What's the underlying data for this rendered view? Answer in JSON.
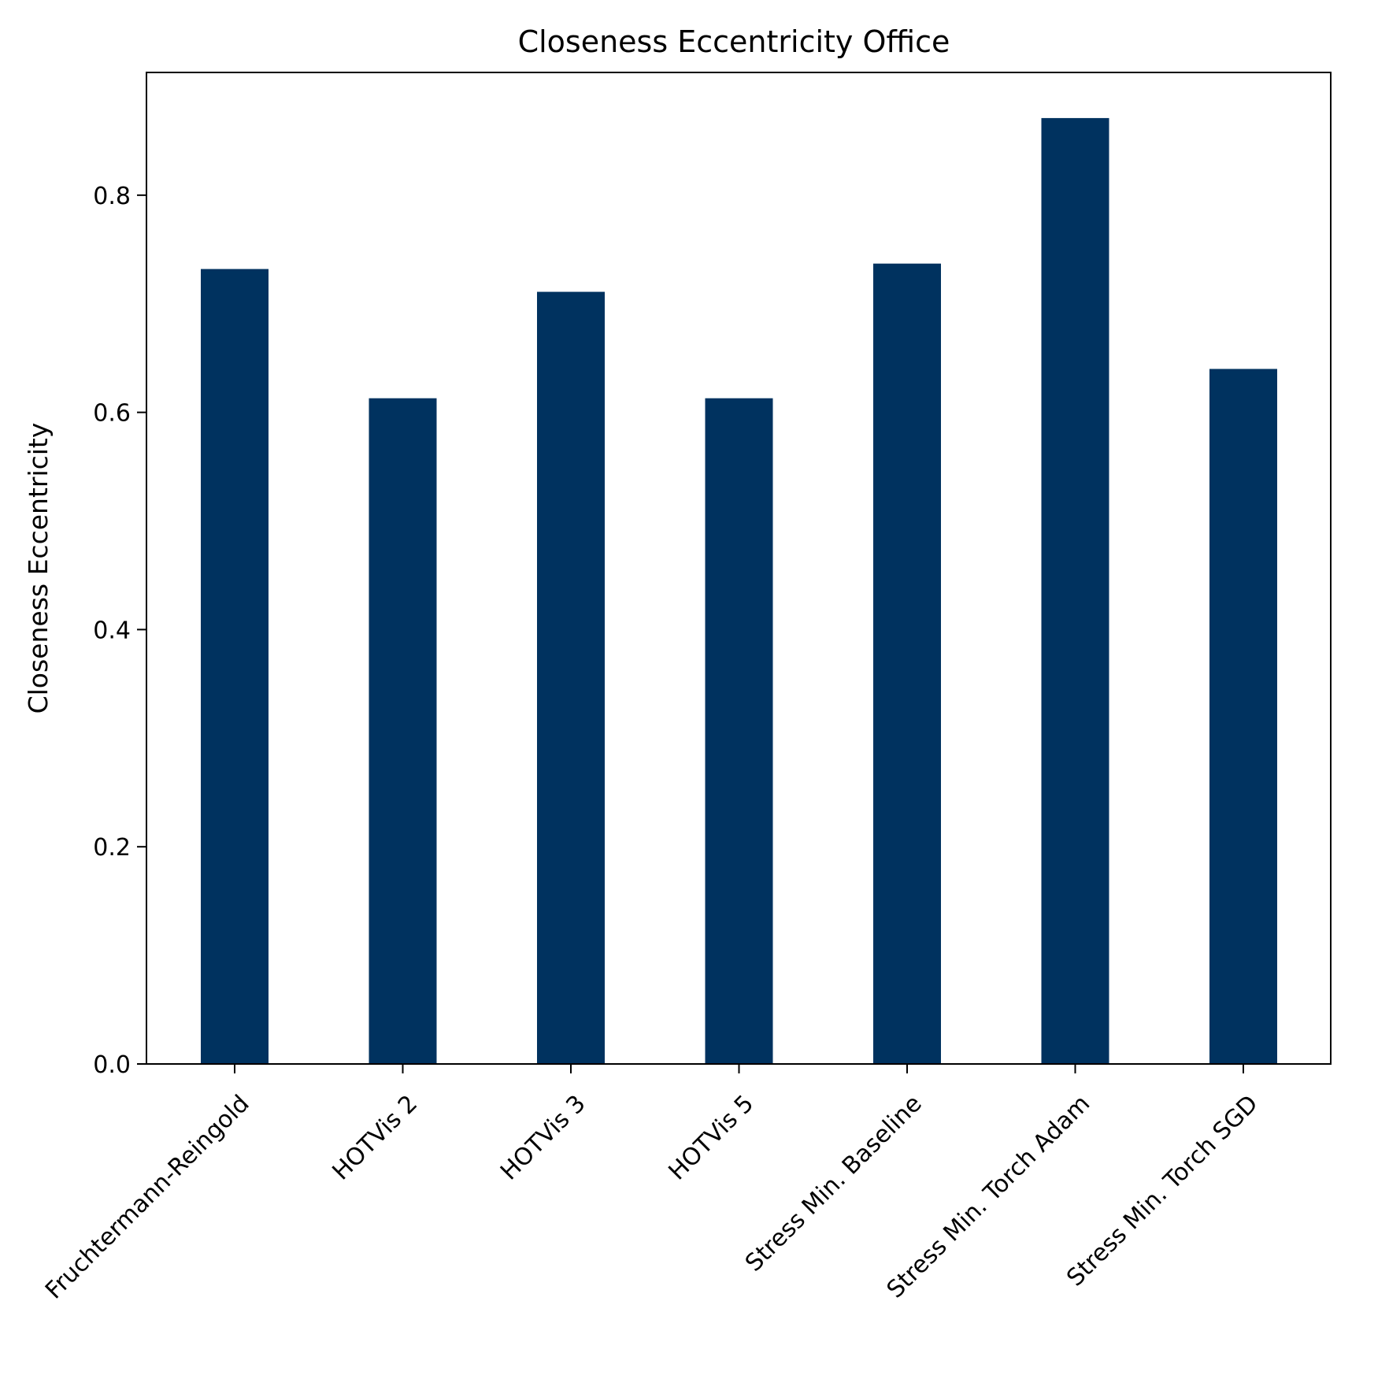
{
  "chart_data": {
    "type": "bar",
    "title": "Closeness Eccentricity Office",
    "xlabel": "",
    "ylabel": "Closeness Eccentricity",
    "categories": [
      "Fruchtermann-Reingold",
      "HOTVis 2",
      "HOTVis 3",
      "HOTVis 5",
      "Stress Min. Baseline",
      "Stress Min. Torch Adam",
      "Stress Min. Torch SGD"
    ],
    "values": [
      0.732,
      0.613,
      0.711,
      0.613,
      0.737,
      0.871,
      0.64
    ],
    "ylim": [
      0.0,
      0.913
    ],
    "yticks": [
      "0.0",
      "0.2",
      "0.4",
      "0.6",
      "0.8"
    ],
    "bar_color": "#00325f",
    "grid": false,
    "legend": "none"
  }
}
